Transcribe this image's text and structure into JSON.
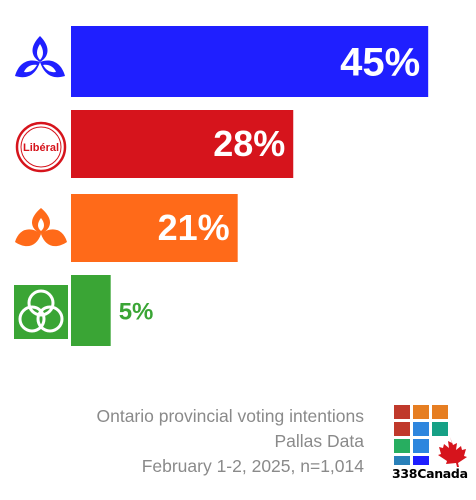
{
  "chart_data": {
    "type": "bar",
    "orientation": "horizontal",
    "categories": [
      "PC",
      "Liberal",
      "NDP",
      "Green"
    ],
    "values": [
      45,
      28,
      21,
      5
    ],
    "value_labels": [
      "45%",
      "28%",
      "21%",
      "5%"
    ],
    "colors": [
      "#1f1fff",
      "#d6141c",
      "#ff6a19",
      "#3aa535"
    ],
    "xlim": [
      0,
      48
    ],
    "grid": false,
    "legend": "none",
    "party_icons": [
      "pc-trillium-icon",
      "liberal-logo-icon",
      "ndp-trillium-icon",
      "green-trillium-icon"
    ],
    "liberal_logo_text": "Libéral"
  },
  "footer": {
    "line1": "Ontario provincial voting intentions",
    "line2": "Pallas Data",
    "line3": "February 1-2, 2025, n=1,014"
  },
  "brand": {
    "name": "338Canada"
  }
}
